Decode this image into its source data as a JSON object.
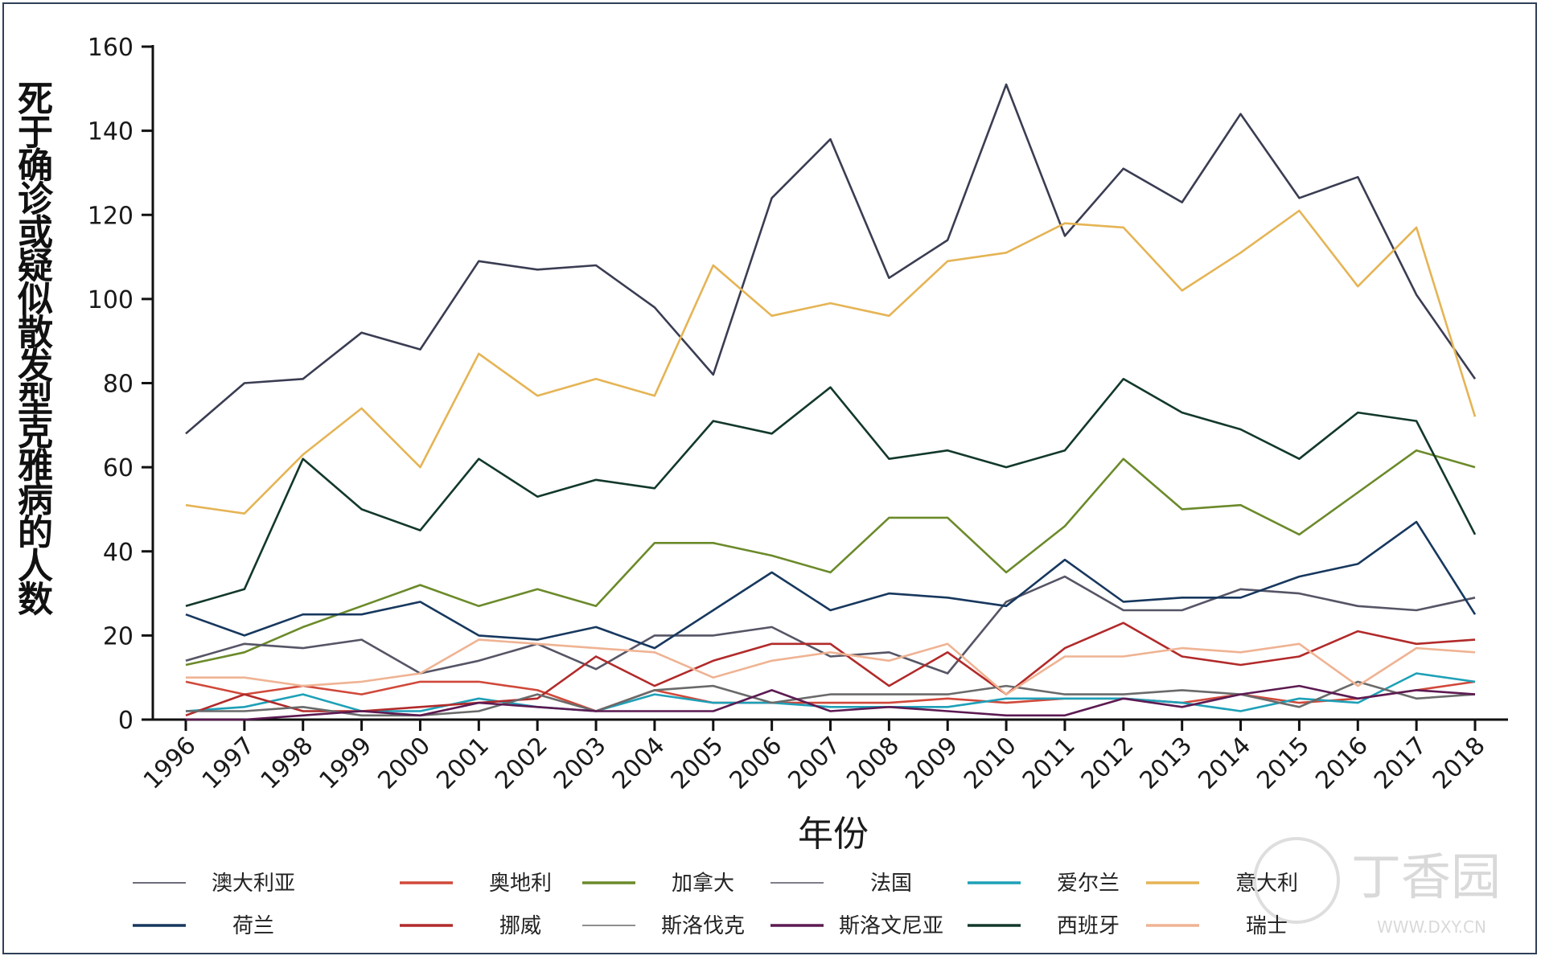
{
  "chart_data": {
    "type": "line",
    "xlabel": "年份",
    "ylabel": "死于确诊或疑似散发型克雅病的人数",
    "x": [
      "1996",
      "1997",
      "1998",
      "1999",
      "2000",
      "2001",
      "2002",
      "2003",
      "2004",
      "2005",
      "2006",
      "2007",
      "2008",
      "2009",
      "2010",
      "2011",
      "2012",
      "2013",
      "2014",
      "2015",
      "2016",
      "2017",
      "2018"
    ],
    "ylim": [
      0,
      160
    ],
    "yticks": [
      0,
      20,
      40,
      60,
      80,
      100,
      120,
      140,
      160
    ],
    "grid": false,
    "legend_position": "bottom",
    "series": [
      {
        "name": "澳大利亚",
        "color": "#3a3d52",
        "values": [
          68,
          80,
          81,
          92,
          88,
          109,
          107,
          108,
          98,
          82,
          124,
          138,
          105,
          114,
          151,
          115,
          131,
          123,
          144,
          124,
          129,
          101,
          81
        ]
      },
      {
        "name": "奥地利",
        "color": "#d0483a",
        "values": [
          9,
          6,
          8,
          6,
          9,
          9,
          7,
          2,
          7,
          4,
          4,
          4,
          4,
          5,
          4,
          5,
          5,
          4,
          6,
          4,
          5,
          7,
          9
        ]
      },
      {
        "name": "加拿大",
        "color": "#6b8a2a",
        "values": [
          13,
          16,
          22,
          27,
          32,
          27,
          31,
          27,
          42,
          42,
          39,
          35,
          48,
          48,
          35,
          46,
          62,
          50,
          51,
          44,
          54,
          64,
          60
        ]
      },
      {
        "name": "法国",
        "color": "#555566",
        "values": [
          14,
          18,
          17,
          19,
          11,
          14,
          18,
          12,
          20,
          20,
          22,
          15,
          16,
          11,
          28,
          34,
          26,
          26,
          31,
          30,
          27,
          26,
          29
        ]
      },
      {
        "name": "爱尔兰",
        "color": "#1ea0b8",
        "values": [
          2,
          3,
          6,
          2,
          2,
          5,
          3,
          2,
          6,
          4,
          4,
          3,
          3,
          3,
          5,
          5,
          5,
          4,
          2,
          5,
          4,
          11,
          9
        ]
      },
      {
        "name": "意大利",
        "color": "#e5b455",
        "values": [
          51,
          49,
          63,
          74,
          60,
          87,
          77,
          81,
          77,
          108,
          96,
          99,
          96,
          109,
          111,
          118,
          117,
          102,
          111,
          121,
          103,
          117,
          72
        ]
      },
      {
        "name": "荷兰",
        "color": "#17385e",
        "values": [
          25,
          20,
          25,
          25,
          28,
          20,
          19,
          22,
          17,
          26,
          35,
          26,
          30,
          29,
          27,
          38,
          28,
          29,
          29,
          34,
          37,
          47,
          25
        ]
      },
      {
        "name": "挪威",
        "color": "#b22a2a",
        "values": [
          1,
          6,
          2,
          2,
          3,
          4,
          5,
          15,
          8,
          14,
          18,
          18,
          8,
          16,
          6,
          17,
          23,
          15,
          13,
          15,
          21,
          18,
          19
        ]
      },
      {
        "name": "斯洛伐克",
        "color": "#6a6a6a",
        "values": [
          2,
          2,
          3,
          1,
          1,
          2,
          6,
          2,
          7,
          8,
          4,
          6,
          6,
          6,
          8,
          6,
          6,
          7,
          6,
          3,
          9,
          5,
          6
        ]
      },
      {
        "name": "斯洛文尼亚",
        "color": "#5c1a52",
        "values": [
          0,
          0,
          1,
          2,
          1,
          4,
          3,
          2,
          2,
          2,
          7,
          2,
          3,
          2,
          1,
          1,
          5,
          3,
          6,
          8,
          5,
          7,
          6
        ]
      },
      {
        "name": "西班牙",
        "color": "#12382c",
        "values": [
          27,
          31,
          62,
          50,
          45,
          62,
          53,
          57,
          55,
          71,
          68,
          79,
          62,
          64,
          60,
          64,
          81,
          73,
          69,
          62,
          73,
          71,
          44
        ]
      },
      {
        "name": "瑞士",
        "color": "#efb393",
        "values": [
          10,
          10,
          8,
          9,
          11,
          19,
          18,
          17,
          16,
          10,
          14,
          16,
          14,
          18,
          6,
          15,
          15,
          17,
          16,
          18,
          8,
          17,
          16
        ]
      }
    ]
  },
  "watermark": {
    "text": "丁香园",
    "url": "WWW.DXY.CN"
  }
}
